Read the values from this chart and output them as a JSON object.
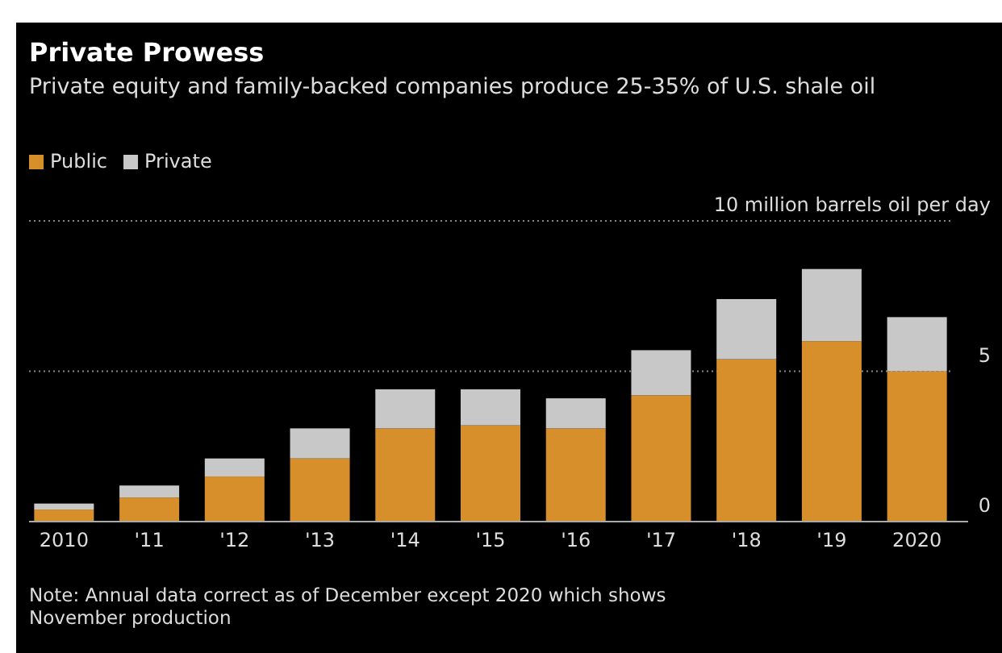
{
  "chart_data": {
    "type": "bar",
    "title": "Private Prowess",
    "subtitle": "Private equity and family-backed companies produce 25-35% of U.S. shale oil",
    "categories": [
      "2010",
      "'11",
      "'12",
      "'13",
      "'14",
      "'15",
      "'16",
      "'17",
      "'18",
      "'19",
      "2020"
    ],
    "series": [
      {
        "name": "Public",
        "color": "#d68f2a",
        "values": [
          0.4,
          0.8,
          1.5,
          2.1,
          3.1,
          3.2,
          3.1,
          4.2,
          5.4,
          6.0,
          5.0
        ]
      },
      {
        "name": "Private",
        "color": "#c8c8c8",
        "values": [
          0.2,
          0.4,
          0.6,
          1.0,
          1.3,
          1.2,
          1.0,
          1.5,
          2.0,
          2.4,
          1.8
        ]
      }
    ],
    "stacked": true,
    "ylim": [
      0,
      10
    ],
    "yticks": [
      0,
      5,
      {
        "value": 10,
        "label": "10 million barrels oil per day"
      }
    ],
    "grid": "y",
    "legend": "top left",
    "annotations": [
      "Note: Annual data correct as of December except 2020 which shows November production"
    ]
  }
}
